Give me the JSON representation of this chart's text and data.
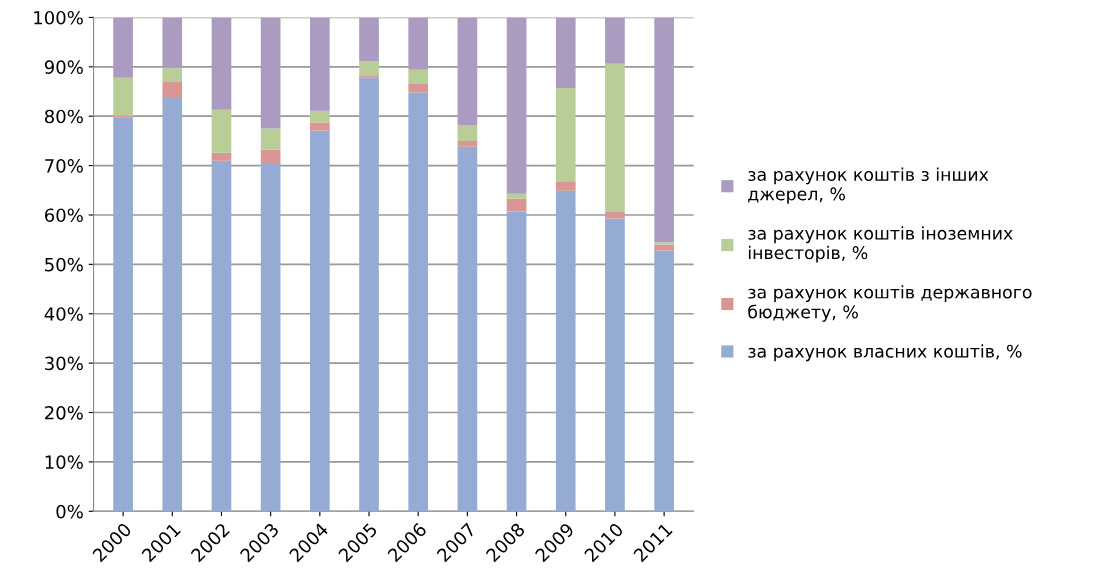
{
  "chart_data": {
    "type": "bar",
    "stacked": true,
    "categories": [
      "2000",
      "2001",
      "2002",
      "2003",
      "2004",
      "2005",
      "2006",
      "2007",
      "2008",
      "2009",
      "2010",
      "2011"
    ],
    "series": [
      {
        "name": "за рахунок власних коштів, %",
        "color": "#95abd3",
        "values": [
          79.7,
          83.9,
          71.0,
          70.3,
          77.1,
          87.8,
          84.8,
          73.8,
          60.7,
          64.9,
          59.3,
          52.8
        ]
      },
      {
        "name": "за рахунок коштів державного\nбюджету, %",
        "color": "#d99694",
        "values": [
          0.4,
          3.0,
          1.6,
          2.9,
          1.6,
          0.5,
          1.7,
          1.2,
          2.6,
          1.8,
          1.3,
          1.2
        ]
      },
      {
        "name": "за рахунок коштів іноземних\nінвесторів, %",
        "color": "#b9cd96",
        "values": [
          7.7,
          2.8,
          8.7,
          4.3,
          2.4,
          2.9,
          2.9,
          3.1,
          1.0,
          19.0,
          30.0,
          0.5
        ]
      },
      {
        "name": "за рахунок коштів з інших\nджерел, %",
        "color": "#ab9bc1",
        "values": [
          12.2,
          10.3,
          18.7,
          22.5,
          18.9,
          8.8,
          10.6,
          21.9,
          35.7,
          14.3,
          9.4,
          45.5
        ]
      }
    ],
    "ylim": [
      0,
      100
    ],
    "yticks": [
      {
        "value": 0,
        "label": "0%"
      },
      {
        "value": 10,
        "label": "10%"
      },
      {
        "value": 20,
        "label": "20%"
      },
      {
        "value": 30,
        "label": "30%"
      },
      {
        "value": 40,
        "label": "40%"
      },
      {
        "value": 50,
        "label": "50%"
      },
      {
        "value": 60,
        "label": "60%"
      },
      {
        "value": 70,
        "label": "70%"
      },
      {
        "value": 80,
        "label": "80%"
      },
      {
        "value": 90,
        "label": "90%"
      },
      {
        "value": 100,
        "label": "100%"
      }
    ],
    "grid": "y",
    "legend": "right"
  }
}
